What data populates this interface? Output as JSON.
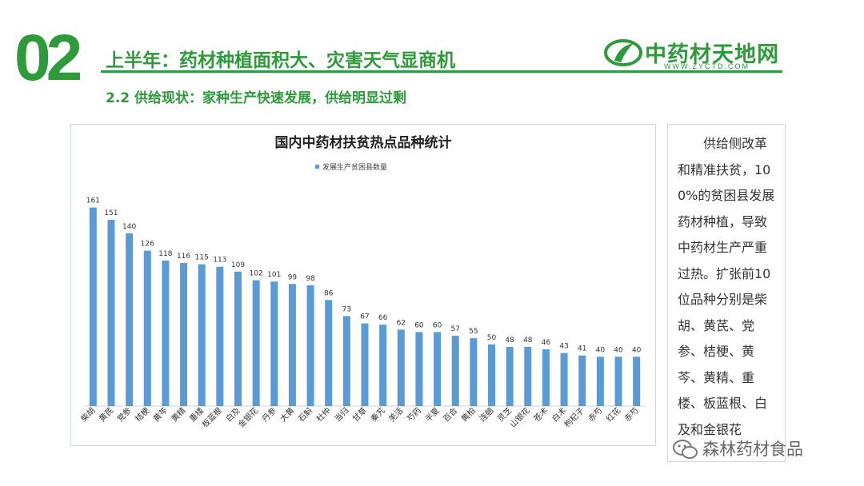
{
  "header": {
    "number": "02",
    "title": "上半年：药材种植面积大、灾害天气显商机",
    "subtitle": "2.2 供给现状：家种生产快速发展，供给明显过剩"
  },
  "logo": {
    "name": "中药材天地网",
    "url": "WWW.ZYCTD.COM"
  },
  "side_text": "供给侧改革和精准扶贫，100%的贫困县发展药材种植，导致中药材生产严重过热。扩张前10位品种分别是柴胡、黄芪、党参、桔梗、黄芩、黄精、重楼、板蓝根、白及和金银花",
  "watermark": "森林药材食品",
  "colors": {
    "brand_green": "#2f9a3b",
    "bar_blue": "#5b9bd5"
  },
  "chart_data": {
    "type": "bar",
    "title": "国内中药材扶贫热点品种统计",
    "legend_position": "top-center",
    "grid": false,
    "categories": [
      "柴胡",
      "黄芪",
      "党参",
      "桔梗",
      "黄芩",
      "黄精",
      "重楼",
      "板蓝根",
      "白及",
      "金银花",
      "丹参",
      "大黄",
      "石斛",
      "杜仲",
      "当归",
      "甘草",
      "秦艽",
      "羌活",
      "芍药",
      "半夏",
      "百合",
      "黄柏",
      "连翘",
      "灵芝",
      "山银花",
      "苍术",
      "白术",
      "枸杞子",
      "赤芍",
      "红花",
      "赤芍"
    ],
    "series": [
      {
        "name": "发展生产贫困县数量",
        "values": [
          161,
          151,
          140,
          126,
          118,
          116,
          115,
          113,
          109,
          102,
          101,
          99,
          98,
          86,
          73,
          67,
          66,
          62,
          60,
          60,
          57,
          55,
          50,
          48,
          48,
          46,
          43,
          41,
          40,
          40,
          40
        ]
      }
    ],
    "ylim": [
      0,
      175
    ]
  }
}
